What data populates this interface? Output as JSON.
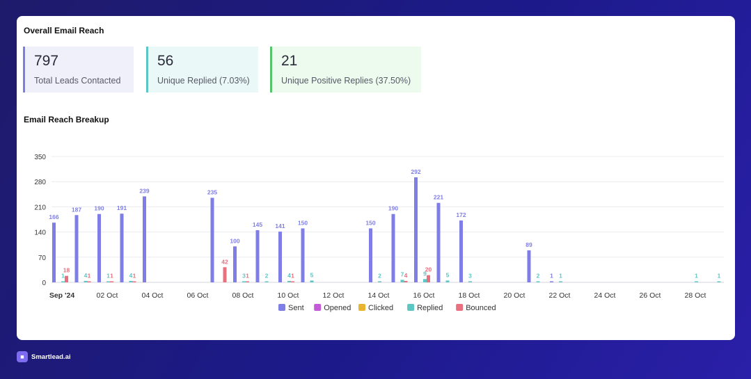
{
  "overview": {
    "title": "Overall Email Reach",
    "stats": [
      {
        "value": "797",
        "label": "Total Leads Contacted",
        "accent": "#7b7fe0",
        "bg": "#f0f0fb"
      },
      {
        "value": "56",
        "label": "Unique Replied (7.03%)",
        "accent": "#5cc6c4",
        "bg": "#ebf8f8"
      },
      {
        "value": "21",
        "label": "Unique Positive Replies (37.50%)",
        "accent": "#56c46a",
        "bg": "#edfaee"
      }
    ]
  },
  "breakup": {
    "title": "Email Reach Breakup"
  },
  "chart_data": {
    "type": "bar",
    "yticks": [
      0,
      70,
      140,
      210,
      280,
      350
    ],
    "ylim": [
      0,
      350
    ],
    "xlim": [
      "2024-09-30",
      "2024-10-29"
    ],
    "xticks": [
      "Sep '24",
      "02 Oct",
      "04 Oct",
      "06 Oct",
      "08 Oct",
      "10 Oct",
      "12 Oct",
      "14 Oct",
      "16 Oct",
      "18 Oct",
      "20 Oct",
      "22 Oct",
      "24 Oct",
      "26 Oct",
      "28 Oct"
    ],
    "series": [
      {
        "name": "Sent",
        "color": "#7f7ee6"
      },
      {
        "name": "Opened",
        "color": "#c35bd6"
      },
      {
        "name": "Clicked",
        "color": "#e7b530"
      },
      {
        "name": "Replied",
        "color": "#5cc6c4"
      },
      {
        "name": "Bounced",
        "color": "#e8707f"
      }
    ],
    "days": [
      {
        "date": "2024-09-30",
        "sent": 166,
        "replied": 1,
        "bounced": 18
      },
      {
        "date": "2024-10-01",
        "sent": 187,
        "replied": 4,
        "bounced": 1
      },
      {
        "date": "2024-10-02",
        "sent": 190,
        "replied": 1,
        "bounced": 1
      },
      {
        "date": "2024-10-03",
        "sent": 191,
        "replied": 4,
        "bounced": 1
      },
      {
        "date": "2024-10-04",
        "sent": 239
      },
      {
        "date": "2024-10-07",
        "sent": 235,
        "bounced": 42
      },
      {
        "date": "2024-10-08",
        "sent": 100,
        "replied": 3,
        "bounced": 1
      },
      {
        "date": "2024-10-09",
        "sent": 145,
        "replied": 2
      },
      {
        "date": "2024-10-10",
        "sent": 141,
        "replied": 4,
        "bounced": 1
      },
      {
        "date": "2024-10-11",
        "sent": 150,
        "replied": 5
      },
      {
        "date": "2024-10-14",
        "sent": 150,
        "replied": 2
      },
      {
        "date": "2024-10-15",
        "sent": 190,
        "replied": 7,
        "bounced": 4
      },
      {
        "date": "2024-10-16",
        "sent": 292,
        "replied": 9,
        "bounced": 20
      },
      {
        "date": "2024-10-17",
        "sent": 221,
        "replied": 5
      },
      {
        "date": "2024-10-18",
        "sent": 172,
        "replied": 3
      },
      {
        "date": "2024-10-21",
        "sent": 89,
        "replied": 2
      },
      {
        "date": "2024-10-22",
        "sent": 1,
        "replied": 1
      },
      {
        "date": "2024-10-28",
        "replied": 1
      },
      {
        "date": "2024-10-29",
        "replied": 1
      }
    ]
  },
  "footer": {
    "brand": "Smartlead.ai",
    "logo_icon": "robot-icon"
  }
}
